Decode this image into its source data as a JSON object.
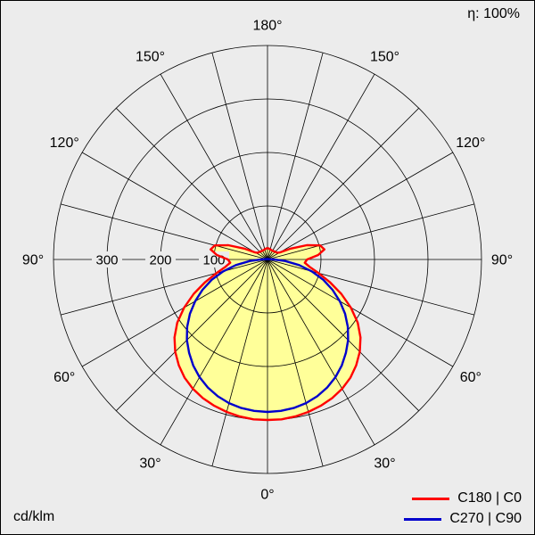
{
  "chart_data": {
    "type": "line",
    "subtype": "polar-photometric-distribution",
    "eta_label": "η: 100%",
    "unit": "cd/klm",
    "background": "#ececec",
    "grid_color": "#000000",
    "fill_color": "#ffff99",
    "r_max": 400,
    "radial_ticks": [
      100,
      200,
      300
    ],
    "radial_tick_labels": [
      {
        "text": "300",
        "value": 300
      },
      {
        "text": "200",
        "value": 200
      },
      {
        "text": "100",
        "value": 100
      }
    ],
    "angle_step_grid": 15,
    "angle_labels": [
      {
        "text": "180°",
        "gamma": 180,
        "side": 0
      },
      {
        "text": "150°",
        "gamma": 150,
        "side": -1
      },
      {
        "text": "150°",
        "gamma": 150,
        "side": 1
      },
      {
        "text": "120°",
        "gamma": 120,
        "side": -1
      },
      {
        "text": "120°",
        "gamma": 120,
        "side": 1
      },
      {
        "text": "90°",
        "gamma": 90,
        "side": -1
      },
      {
        "text": "90°",
        "gamma": 90,
        "side": 1
      },
      {
        "text": "60°",
        "gamma": 60,
        "side": -1
      },
      {
        "text": "60°",
        "gamma": 60,
        "side": 1
      },
      {
        "text": "30°",
        "gamma": 30,
        "side": -1
      },
      {
        "text": "30°",
        "gamma": 30,
        "side": 1
      },
      {
        "text": "0°",
        "gamma": 0,
        "side": 0
      }
    ],
    "angles": [
      0,
      5,
      10,
      15,
      20,
      25,
      30,
      35,
      40,
      45,
      50,
      55,
      60,
      65,
      70,
      75,
      80,
      85,
      90,
      95,
      100,
      105,
      110,
      115,
      120,
      125,
      130,
      135,
      140,
      145,
      150,
      155,
      160,
      165,
      170,
      175,
      180
    ],
    "series": [
      {
        "name": "C180 | C0",
        "color": "#ff0000",
        "values": [
          300,
          300,
          298,
          295,
          291,
          286,
          279,
          270,
          258,
          244,
          227,
          206,
          180,
          152,
          124,
          99,
          80,
          70,
          74,
          95,
          108,
          102,
          78,
          48,
          26,
          22,
          21,
          20,
          20,
          19,
          19,
          19,
          19,
          20,
          20,
          21,
          21
        ]
      },
      {
        "name": "C270 | C90",
        "color": "#0000cc",
        "values": [
          285,
          284,
          282,
          278,
          272,
          264,
          254,
          242,
          228,
          213,
          196,
          177,
          156,
          134,
          111,
          86,
          60,
          33,
          12,
          5,
          3,
          2,
          2,
          1,
          1,
          1,
          1,
          1,
          1,
          1,
          1,
          1,
          1,
          1,
          1,
          1,
          1
        ]
      }
    ]
  }
}
